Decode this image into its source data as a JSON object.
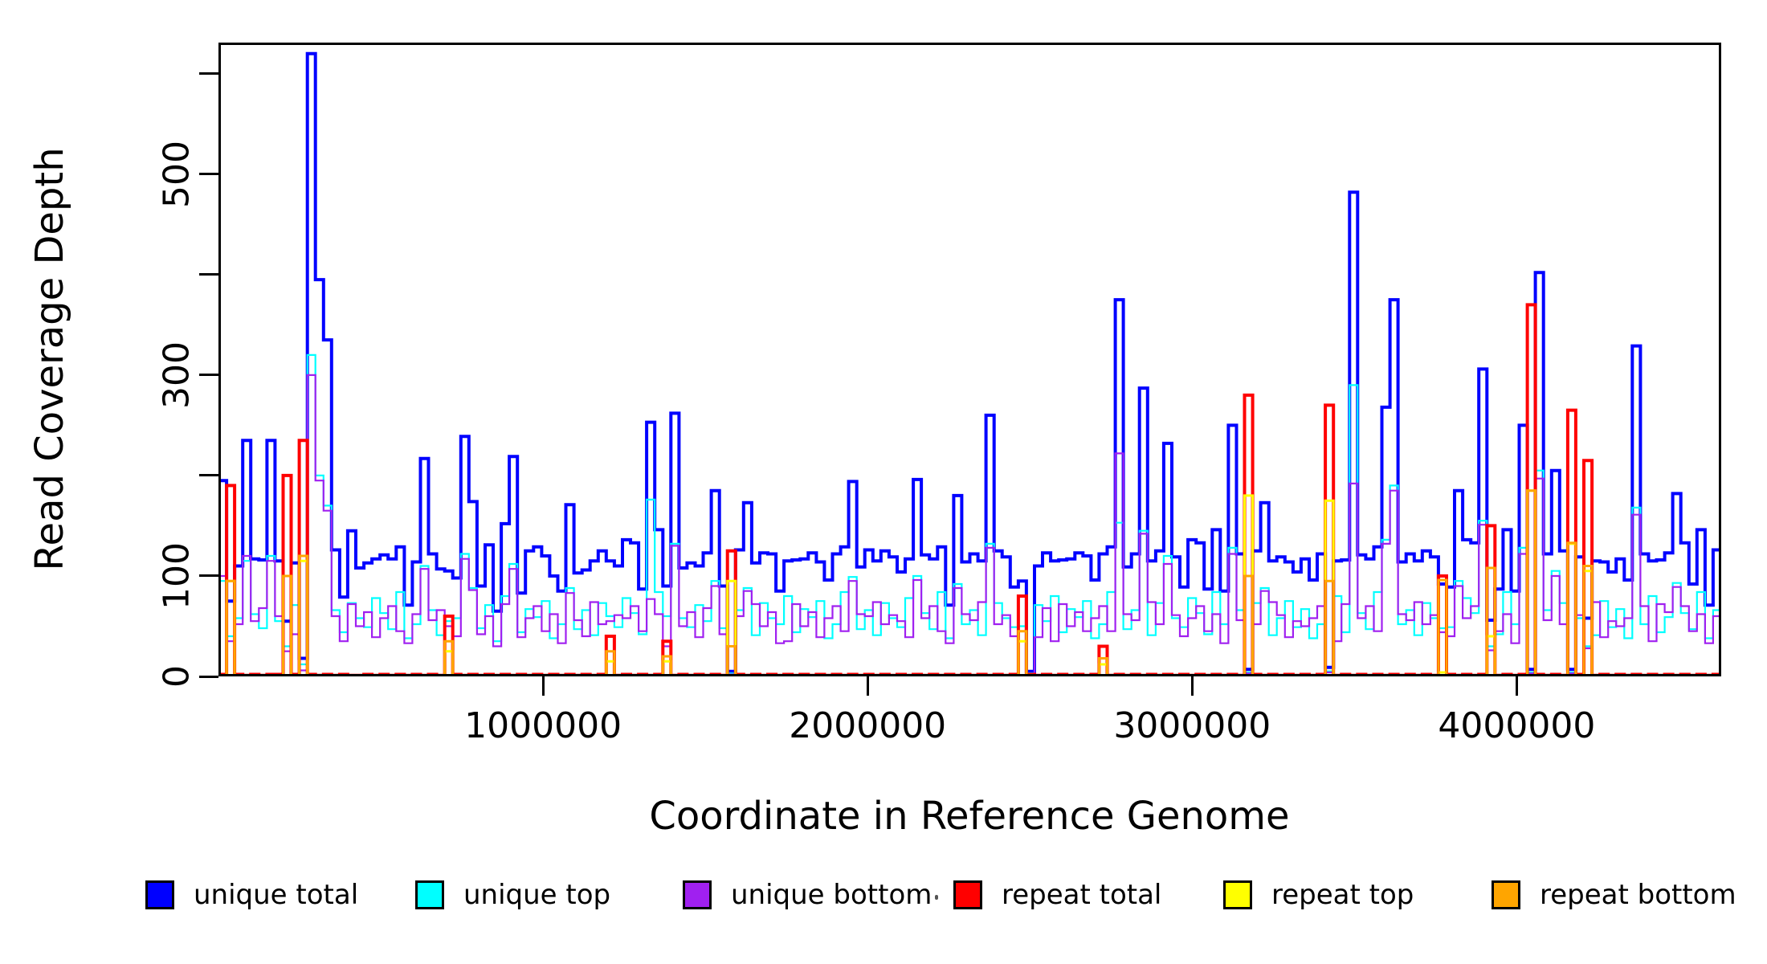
{
  "figure": {
    "x_title": "Coordinate in Reference Genome",
    "y_title": "Read Coverage Depth",
    "background": "#ffffff",
    "frame_color": "#000000"
  },
  "legend": {
    "items": [
      {
        "label": "unique total",
        "color": "#0000FF"
      },
      {
        "label": "unique top",
        "color": "#00FFFF"
      },
      {
        "label": "unique bottom",
        "color": "#A020F0"
      },
      {
        "label": "repeat total",
        "color": "#FF0000"
      },
      {
        "label": "repeat top",
        "color": "#FFFF00"
      },
      {
        "label": "repeat bottom",
        "color": "#FFA500"
      }
    ]
  },
  "chart_data": {
    "type": "line",
    "step": true,
    "title": "",
    "xlabel": "Coordinate in Reference Genome",
    "ylabel": "Read Coverage Depth",
    "xlim": [
      0,
      4630000
    ],
    "ylim": [
      0,
      631
    ],
    "grid": false,
    "legend_position": "bottom",
    "bin_size_bp": 25000,
    "y_ticks": [
      {
        "value": 0,
        "label": "0"
      },
      {
        "value": 100,
        "label": "100"
      },
      {
        "value": 200,
        "label": ""
      },
      {
        "value": 300,
        "label": "300"
      },
      {
        "value": 400,
        "label": ""
      },
      {
        "value": 500,
        "label": "500"
      },
      {
        "value": 600,
        "label": ""
      }
    ],
    "x_ticks": [
      {
        "bp": 1000000,
        "label": "1000000"
      },
      {
        "bp": 2000000,
        "label": "2000000"
      },
      {
        "bp": 3000000,
        "label": "3000000"
      },
      {
        "bp": 4000000,
        "label": "4000000"
      }
    ],
    "series": [
      {
        "name": "unique total",
        "color": "#0000FF",
        "width": 4,
        "values": [
          195,
          75,
          110,
          235,
          117,
          116,
          235,
          115,
          55,
          113,
          18,
          620,
          395,
          335,
          126,
          79,
          145,
          108,
          113,
          117,
          121,
          117,
          129,
          71,
          114,
          217,
          122,
          107,
          105,
          98,
          239,
          174,
          90,
          131,
          65,
          152,
          219,
          83,
          125,
          129,
          120,
          100,
          85,
          171,
          103,
          106,
          115,
          125,
          115,
          110,
          136,
          133,
          87,
          253,
          146,
          90,
          262,
          108,
          113,
          110,
          123,
          185,
          90,
          5,
          126,
          173,
          113,
          123,
          122,
          85,
          115,
          116,
          117,
          123,
          114,
          96,
          122,
          129,
          194,
          109,
          126,
          115,
          125,
          119,
          104,
          117,
          196,
          121,
          117,
          129,
          71,
          180,
          114,
          122,
          115,
          260,
          125,
          119,
          89,
          95,
          5,
          110,
          123,
          115,
          116,
          117,
          123,
          120,
          96,
          122,
          129,
          375,
          109,
          122,
          287,
          115,
          125,
          232,
          119,
          89,
          136,
          133,
          87,
          146,
          85,
          250,
          122,
          7,
          125,
          173,
          115,
          119,
          114,
          104,
          117,
          96,
          122,
          9,
          115,
          116,
          482,
          121,
          117,
          129,
          268,
          375,
          114,
          122,
          115,
          125,
          119,
          92,
          89,
          185,
          136,
          133,
          306,
          56,
          87,
          146,
          85,
          250,
          7,
          402,
          122,
          205,
          125,
          7,
          119,
          58,
          115,
          114,
          104,
          117,
          96,
          329,
          122,
          115,
          116,
          123,
          182,
          133,
          92,
          146,
          71,
          126
        ]
      },
      {
        "name": "unique top",
        "color": "#00FFFF",
        "width": 2.2,
        "values": [
          95,
          40,
          58,
          115,
          62,
          48,
          120,
          55,
          30,
          71,
          12,
          320,
          200,
          170,
          66,
          44,
          73,
          58,
          49,
          78,
          63,
          47,
          84,
          38,
          52,
          110,
          66,
          41,
          55,
          58,
          122,
          88,
          48,
          71,
          35,
          80,
          112,
          44,
          67,
          59,
          75,
          38,
          52,
          88,
          47,
          66,
          41,
          73,
          60,
          49,
          78,
          63,
          42,
          176,
          84,
          60,
          132,
          58,
          49,
          71,
          55,
          95,
          48,
          3,
          66,
          88,
          41,
          73,
          58,
          52,
          80,
          44,
          67,
          59,
          75,
          38,
          52,
          84,
          99,
          47,
          66,
          41,
          73,
          58,
          49,
          78,
          100,
          63,
          47,
          84,
          38,
          92,
          52,
          66,
          41,
          132,
          73,
          58,
          49,
          50,
          3,
          71,
          55,
          80,
          44,
          67,
          59,
          75,
          38,
          52,
          84,
          153,
          47,
          66,
          145,
          41,
          73,
          120,
          58,
          49,
          78,
          63,
          42,
          84,
          52,
          128,
          66,
          4,
          73,
          88,
          41,
          58,
          75,
          49,
          67,
          38,
          52,
          5,
          80,
          44,
          290,
          63,
          47,
          84,
          136,
          190,
          52,
          66,
          41,
          73,
          58,
          48,
          49,
          95,
          78,
          63,
          155,
          30,
          42,
          84,
          52,
          128,
          4,
          205,
          66,
          105,
          73,
          4,
          58,
          30,
          41,
          75,
          49,
          67,
          38,
          168,
          52,
          80,
          44,
          59,
          93,
          63,
          47,
          84,
          38,
          66
        ]
      },
      {
        "name": "unique bottom",
        "color": "#A020F0",
        "width": 2.2,
        "values": [
          100,
          35,
          52,
          120,
          55,
          68,
          115,
          60,
          25,
          42,
          6,
          300,
          195,
          165,
          60,
          35,
          72,
          50,
          64,
          39,
          58,
          70,
          45,
          33,
          62,
          107,
          56,
          66,
          50,
          40,
          117,
          86,
          42,
          60,
          30,
          72,
          107,
          39,
          58,
          70,
          45,
          62,
          33,
          83,
          56,
          40,
          74,
          52,
          55,
          61,
          58,
          70,
          45,
          77,
          62,
          30,
          130,
          50,
          64,
          39,
          68,
          90,
          42,
          2,
          60,
          85,
          72,
          50,
          64,
          33,
          35,
          72,
          50,
          64,
          39,
          58,
          70,
          45,
          95,
          62,
          60,
          74,
          52,
          61,
          55,
          39,
          96,
          58,
          70,
          45,
          33,
          88,
          62,
          56,
          74,
          128,
          52,
          61,
          40,
          45,
          2,
          39,
          68,
          35,
          72,
          50,
          64,
          45,
          58,
          70,
          45,
          222,
          62,
          56,
          142,
          74,
          52,
          112,
          61,
          40,
          58,
          70,
          45,
          62,
          33,
          122,
          56,
          3,
          52,
          85,
          74,
          61,
          39,
          55,
          50,
          58,
          70,
          4,
          35,
          72,
          192,
          58,
          70,
          45,
          132,
          185,
          62,
          56,
          74,
          52,
          61,
          44,
          40,
          90,
          58,
          70,
          151,
          26,
          45,
          62,
          33,
          122,
          3,
          197,
          56,
          100,
          52,
          3,
          61,
          28,
          74,
          39,
          55,
          50,
          58,
          161,
          70,
          35,
          72,
          64,
          89,
          70,
          45,
          62,
          33,
          60
        ]
      },
      {
        "name": "repeat total",
        "color": "#FF0000",
        "width": 4,
        "values": [
          2,
          190,
          2,
          1,
          2,
          1,
          2,
          2,
          200,
          2,
          235,
          2,
          1,
          2,
          1,
          2,
          1,
          1,
          2,
          1,
          2,
          1,
          2,
          1,
          2,
          1,
          2,
          1,
          60,
          2,
          1,
          2,
          1,
          2,
          1,
          2,
          1,
          2,
          1,
          2,
          1,
          2,
          1,
          2,
          1,
          2,
          1,
          2,
          40,
          1,
          2,
          1,
          2,
          1,
          2,
          35,
          1,
          2,
          1,
          2,
          1,
          2,
          1,
          125,
          2,
          1,
          2,
          1,
          2,
          1,
          2,
          1,
          2,
          1,
          2,
          1,
          2,
          1,
          2,
          1,
          2,
          1,
          2,
          1,
          2,
          1,
          2,
          1,
          2,
          1,
          2,
          1,
          2,
          1,
          2,
          1,
          2,
          1,
          2,
          80,
          2,
          1,
          2,
          1,
          2,
          1,
          2,
          1,
          2,
          30,
          1,
          2,
          1,
          2,
          1,
          2,
          1,
          2,
          1,
          2,
          1,
          2,
          1,
          2,
          1,
          2,
          1,
          280,
          2,
          1,
          2,
          1,
          2,
          1,
          2,
          1,
          2,
          270,
          1,
          2,
          1,
          2,
          1,
          2,
          1,
          2,
          1,
          2,
          1,
          2,
          1,
          100,
          2,
          1,
          2,
          1,
          2,
          150,
          1,
          2,
          1,
          2,
          370,
          2,
          1,
          2,
          1,
          265,
          2,
          215,
          1,
          2,
          1,
          2,
          1,
          2,
          1,
          2,
          1,
          2,
          1,
          2,
          1,
          2,
          1,
          2
        ]
      },
      {
        "name": "repeat top",
        "color": "#FFFF00",
        "width": 3,
        "values": [
          1,
          95,
          1,
          0,
          1,
          0,
          1,
          1,
          100,
          1,
          115,
          1,
          0,
          1,
          0,
          1,
          0,
          0,
          1,
          0,
          1,
          0,
          1,
          0,
          1,
          0,
          1,
          0,
          25,
          1,
          0,
          1,
          0,
          1,
          0,
          1,
          0,
          1,
          0,
          1,
          0,
          1,
          0,
          1,
          0,
          1,
          0,
          1,
          15,
          0,
          1,
          0,
          1,
          0,
          1,
          15,
          0,
          1,
          0,
          1,
          0,
          1,
          0,
          95,
          1,
          0,
          1,
          0,
          1,
          0,
          1,
          0,
          1,
          0,
          1,
          0,
          1,
          0,
          1,
          0,
          1,
          0,
          1,
          0,
          1,
          0,
          1,
          0,
          1,
          0,
          1,
          0,
          1,
          0,
          1,
          0,
          1,
          0,
          1,
          35,
          1,
          0,
          1,
          0,
          1,
          0,
          1,
          0,
          1,
          12,
          0,
          1,
          0,
          1,
          0,
          1,
          0,
          1,
          0,
          1,
          0,
          1,
          0,
          1,
          0,
          1,
          0,
          180,
          1,
          0,
          1,
          0,
          1,
          0,
          1,
          0,
          1,
          175,
          0,
          1,
          0,
          1,
          0,
          1,
          0,
          1,
          0,
          1,
          0,
          1,
          0,
          4,
          1,
          0,
          1,
          0,
          1,
          40,
          0,
          1,
          0,
          1,
          185,
          1,
          0,
          1,
          0,
          132,
          1,
          105,
          0,
          1,
          0,
          1,
          0,
          1,
          0,
          1,
          0,
          1,
          0,
          1,
          0,
          1,
          0,
          1
        ]
      },
      {
        "name": "repeat bottom",
        "color": "#FFA500",
        "width": 3,
        "values": [
          1,
          95,
          1,
          1,
          1,
          1,
          1,
          1,
          100,
          1,
          120,
          1,
          1,
          1,
          1,
          1,
          1,
          1,
          1,
          1,
          1,
          1,
          1,
          1,
          1,
          1,
          1,
          1,
          35,
          1,
          1,
          1,
          1,
          1,
          1,
          1,
          1,
          1,
          1,
          1,
          1,
          1,
          1,
          1,
          1,
          1,
          1,
          1,
          25,
          1,
          1,
          1,
          1,
          1,
          1,
          20,
          1,
          1,
          1,
          1,
          1,
          1,
          1,
          30,
          1,
          1,
          1,
          1,
          1,
          1,
          1,
          1,
          1,
          1,
          1,
          1,
          1,
          1,
          1,
          1,
          1,
          1,
          1,
          1,
          1,
          1,
          1,
          1,
          1,
          1,
          1,
          1,
          1,
          1,
          1,
          1,
          1,
          1,
          1,
          45,
          1,
          1,
          1,
          1,
          1,
          1,
          1,
          1,
          1,
          18,
          1,
          1,
          1,
          1,
          1,
          1,
          1,
          1,
          1,
          1,
          1,
          1,
          1,
          1,
          1,
          1,
          1,
          100,
          1,
          1,
          1,
          1,
          1,
          1,
          1,
          1,
          1,
          95,
          1,
          1,
          1,
          1,
          1,
          1,
          1,
          1,
          1,
          1,
          1,
          1,
          1,
          96,
          1,
          1,
          1,
          1,
          1,
          108,
          1,
          1,
          1,
          1,
          185,
          1,
          1,
          1,
          1,
          133,
          1,
          110,
          1,
          1,
          1,
          1,
          1,
          1,
          1,
          1,
          1,
          1,
          1,
          1,
          1,
          1,
          1,
          1
        ]
      }
    ]
  }
}
